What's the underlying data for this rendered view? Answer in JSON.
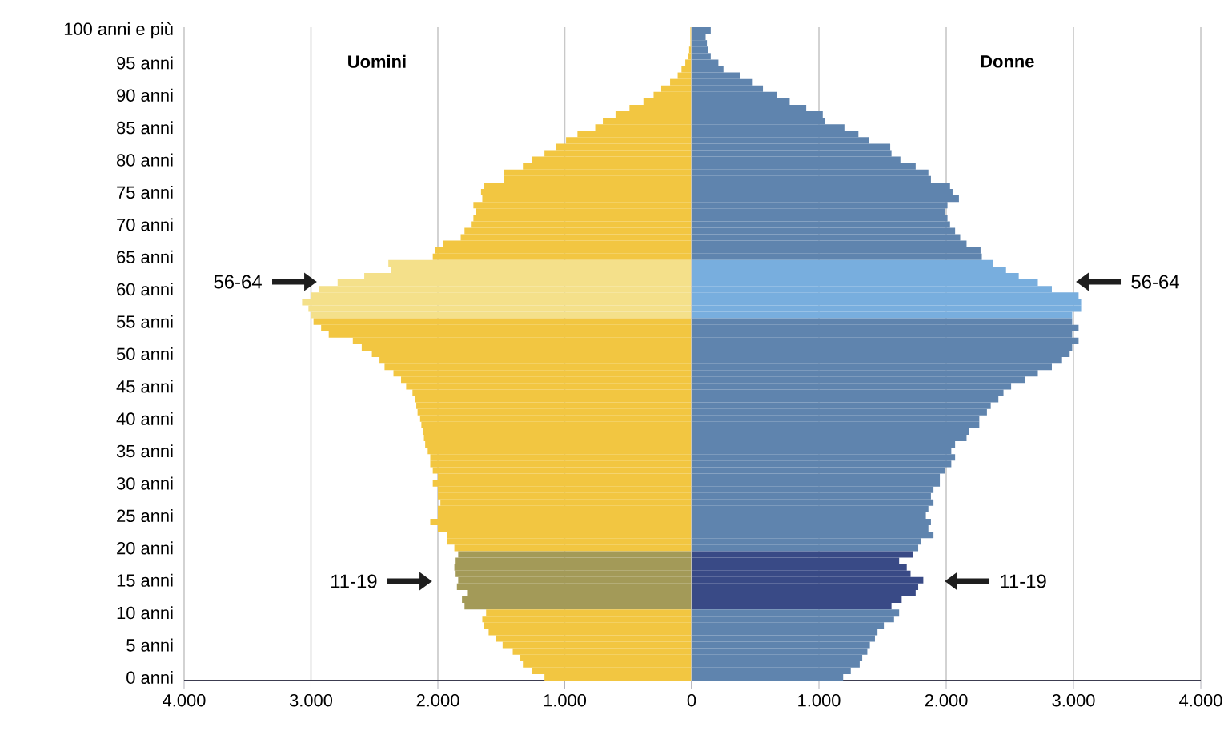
{
  "chart_data": [
    {
      "type": "bar",
      "orientation": "horizontal",
      "categories": [
        "100 anni e più",
        null,
        null,
        null,
        null,
        "95 anni",
        null,
        null,
        null,
        null,
        "90 anni",
        null,
        null,
        null,
        null,
        "85 anni",
        null,
        null,
        null,
        null,
        "80 anni",
        null,
        null,
        null,
        null,
        "75 anni",
        null,
        null,
        null,
        null,
        "70 anni",
        null,
        null,
        null,
        null,
        "65 anni",
        null,
        null,
        null,
        null,
        "60 anni",
        null,
        null,
        null,
        null,
        "55 anni",
        null,
        null,
        null,
        null,
        "50 anni",
        null,
        null,
        null,
        null,
        "45 anni",
        null,
        null,
        null,
        null,
        "40 anni",
        null,
        null,
        null,
        null,
        "35 anni",
        null,
        null,
        null,
        null,
        "30 anni",
        null,
        null,
        null,
        null,
        "25 anni",
        null,
        null,
        null,
        null,
        "20 anni",
        null,
        null,
        null,
        null,
        "15 anni",
        null,
        null,
        null,
        null,
        "10 anni",
        null,
        null,
        null,
        null,
        "5 anni",
        null,
        null,
        null,
        null,
        "0 anni"
      ],
      "series": [
        {
          "name": "Uomini",
          "values": [
            10,
            10,
            10,
            20,
            30,
            50,
            80,
            110,
            170,
            240,
            300,
            380,
            490,
            600,
            700,
            760,
            900,
            990,
            1070,
            1160,
            1260,
            1330,
            1480,
            1480,
            1640,
            1660,
            1650,
            1720,
            1700,
            1720,
            1740,
            1790,
            1820,
            1960,
            2020,
            2040,
            2390,
            2370,
            2580,
            2790,
            2940,
            3000,
            3070,
            3020,
            3000,
            2980,
            2920,
            2860,
            2670,
            2600,
            2520,
            2460,
            2420,
            2350,
            2290,
            2250,
            2200,
            2180,
            2170,
            2160,
            2140,
            2130,
            2120,
            2110,
            2100,
            2080,
            2060,
            2060,
            2040,
            2000,
            2040,
            2000,
            2000,
            1980,
            2000,
            2000,
            2060,
            2000,
            1930,
            1930,
            1870,
            1840,
            1860,
            1870,
            1860,
            1840,
            1850,
            1770,
            1810,
            1790,
            1620,
            1650,
            1640,
            1600,
            1540,
            1490,
            1410,
            1350,
            1330,
            1260,
            1160
          ],
          "colors": [
            "#f2c641",
            "#f2c641",
            "#f2c641",
            "#f2c641",
            "#f2c641",
            "#f2c641",
            "#f2c641",
            "#f2c641",
            "#f2c641",
            "#f2c641",
            "#f2c641",
            "#f2c641",
            "#f2c641",
            "#f2c641",
            "#f2c641",
            "#f2c641",
            "#f2c641",
            "#f2c641",
            "#f2c641",
            "#f2c641",
            "#f2c641",
            "#f2c641",
            "#f2c641",
            "#f2c641",
            "#f2c641",
            "#f2c641",
            "#f2c641",
            "#f2c641",
            "#f2c641",
            "#f2c641",
            "#f2c641",
            "#f2c641",
            "#f2c641",
            "#f2c641",
            "#f2c641",
            "#f2c641",
            "#f4e08a",
            "#f4e08a",
            "#f4e08a",
            "#f4e08a",
            "#f4e08a",
            "#f4e08a",
            "#f4e08a",
            "#f4e08a",
            "#f4e08a",
            "#f2c641",
            "#f2c641",
            "#f2c641",
            "#f2c641",
            "#f2c641",
            "#f2c641",
            "#f2c641",
            "#f2c641",
            "#f2c641",
            "#f2c641",
            "#f2c641",
            "#f2c641",
            "#f2c641",
            "#f2c641",
            "#f2c641",
            "#f2c641",
            "#f2c641",
            "#f2c641",
            "#f2c641",
            "#f2c641",
            "#f2c641",
            "#f2c641",
            "#f2c641",
            "#f2c641",
            "#f2c641",
            "#f2c641",
            "#f2c641",
            "#f2c641",
            "#f2c641",
            "#f2c641",
            "#f2c641",
            "#f2c641",
            "#f2c641",
            "#f2c641",
            "#f2c641",
            "#f2c641",
            "#a39a58",
            "#a39a58",
            "#a39a58",
            "#a39a58",
            "#a39a58",
            "#a39a58",
            "#a39a58",
            "#a39a58",
            "#a39a58",
            "#f2c641",
            "#f2c641",
            "#f2c641",
            "#f2c641",
            "#f2c641",
            "#f2c641",
            "#f2c641",
            "#f2c641",
            "#f2c641",
            "#f2c641",
            "#f2c641"
          ]
        }
      ],
      "xlim": [
        4000,
        0
      ],
      "xticks": [
        {
          "value": 4000,
          "label": "4.000"
        },
        {
          "value": 3000,
          "label": "3.000"
        },
        {
          "value": 2000,
          "label": "2.000"
        },
        {
          "value": 1000,
          "label": "1.000"
        },
        {
          "value": 0,
          "label": null
        }
      ],
      "grid": "x",
      "annotations": [
        "56-64",
        "11-19"
      ]
    },
    {
      "type": "bar",
      "orientation": "horizontal",
      "categories": [
        null,
        null,
        null,
        null,
        null,
        null,
        null,
        null,
        null,
        null,
        null,
        null,
        null,
        null,
        null,
        null,
        null,
        null,
        null,
        null,
        null,
        null,
        null,
        null,
        null,
        null,
        null,
        null,
        null,
        null,
        null,
        null,
        null,
        null,
        null,
        null,
        null,
        null,
        null,
        null,
        null,
        null,
        null,
        null,
        null,
        null,
        null,
        null,
        null,
        null,
        null,
        null,
        null,
        null,
        null,
        null,
        null,
        null,
        null,
        null,
        null,
        null,
        null,
        null,
        null,
        null,
        null,
        null,
        null,
        null,
        null,
        null,
        null,
        null,
        null,
        null,
        null,
        null,
        null,
        null,
        null,
        null,
        null,
        null,
        null,
        null,
        null,
        null,
        null,
        null,
        null,
        null,
        null,
        null,
        null,
        null,
        null,
        null,
        null,
        null,
        null
      ],
      "series": [
        {
          "name": "Donne",
          "values": [
            150,
            110,
            120,
            130,
            150,
            210,
            250,
            380,
            480,
            560,
            670,
            770,
            900,
            1030,
            1050,
            1200,
            1310,
            1390,
            1560,
            1570,
            1640,
            1760,
            1860,
            1880,
            2030,
            2050,
            2100,
            2010,
            1990,
            2010,
            2030,
            2070,
            2110,
            2160,
            2270,
            2280,
            2370,
            2470,
            2570,
            2720,
            2830,
            3040,
            3060,
            3060,
            2990,
            2990,
            3040,
            2990,
            3040,
            2990,
            2970,
            2910,
            2830,
            2720,
            2620,
            2510,
            2450,
            2410,
            2350,
            2320,
            2260,
            2260,
            2180,
            2160,
            2070,
            2040,
            2070,
            2040,
            1990,
            1950,
            1950,
            1900,
            1880,
            1900,
            1860,
            1840,
            1880,
            1860,
            1900,
            1800,
            1780,
            1740,
            1630,
            1690,
            1720,
            1820,
            1780,
            1760,
            1650,
            1570,
            1630,
            1590,
            1510,
            1460,
            1440,
            1400,
            1380,
            1340,
            1320,
            1250,
            1190
          ],
          "colors": [
            "#5f84ae",
            "#5f84ae",
            "#5f84ae",
            "#5f84ae",
            "#5f84ae",
            "#5f84ae",
            "#5f84ae",
            "#5f84ae",
            "#5f84ae",
            "#5f84ae",
            "#5f84ae",
            "#5f84ae",
            "#5f84ae",
            "#5f84ae",
            "#5f84ae",
            "#5f84ae",
            "#5f84ae",
            "#5f84ae",
            "#5f84ae",
            "#5f84ae",
            "#5f84ae",
            "#5f84ae",
            "#5f84ae",
            "#5f84ae",
            "#5f84ae",
            "#5f84ae",
            "#5f84ae",
            "#5f84ae",
            "#5f84ae",
            "#5f84ae",
            "#5f84ae",
            "#5f84ae",
            "#5f84ae",
            "#5f84ae",
            "#5f84ae",
            "#5f84ae",
            "#78aede",
            "#78aede",
            "#78aede",
            "#78aede",
            "#78aede",
            "#78aede",
            "#78aede",
            "#78aede",
            "#78aede",
            "#5f84ae",
            "#5f84ae",
            "#5f84ae",
            "#5f84ae",
            "#5f84ae",
            "#5f84ae",
            "#5f84ae",
            "#5f84ae",
            "#5f84ae",
            "#5f84ae",
            "#5f84ae",
            "#5f84ae",
            "#5f84ae",
            "#5f84ae",
            "#5f84ae",
            "#5f84ae",
            "#5f84ae",
            "#5f84ae",
            "#5f84ae",
            "#5f84ae",
            "#5f84ae",
            "#5f84ae",
            "#5f84ae",
            "#5f84ae",
            "#5f84ae",
            "#5f84ae",
            "#5f84ae",
            "#5f84ae",
            "#5f84ae",
            "#5f84ae",
            "#5f84ae",
            "#5f84ae",
            "#5f84ae",
            "#5f84ae",
            "#5f84ae",
            "#5f84ae",
            "#394a86",
            "#394a86",
            "#394a86",
            "#394a86",
            "#394a86",
            "#394a86",
            "#394a86",
            "#394a86",
            "#394a86",
            "#5f84ae",
            "#5f84ae",
            "#5f84ae",
            "#5f84ae",
            "#5f84ae",
            "#5f84ae",
            "#5f84ae",
            "#5f84ae",
            "#5f84ae",
            "#5f84ae",
            "#5f84ae"
          ]
        }
      ],
      "xlim": [
        0,
        4000
      ],
      "xticks": [
        0,
        {
          "value": 1000,
          "label": "1.000"
        },
        {
          "value": 2000,
          "label": "2.000"
        },
        {
          "value": 3000,
          "label": "3.000"
        },
        {
          "value": 4000,
          "label": "4.000"
        }
      ],
      "grid": "x",
      "annotations": [
        "56-64",
        "11-19"
      ]
    }
  ]
}
